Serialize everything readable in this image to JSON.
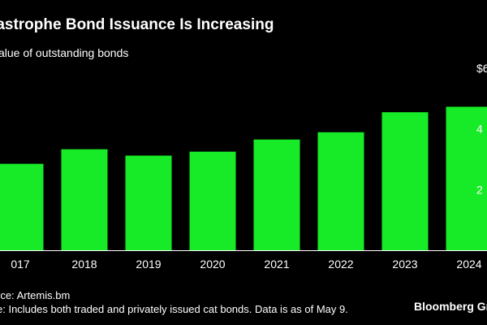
{
  "header": {
    "title": "tastrophe Bond Issuance Is Increasing",
    "subtitle": "alue of outstanding bonds"
  },
  "footer": {
    "source": "rce: Artemis.bm",
    "note": "e: Includes both traded and privately issued cat bonds. Data is as of May 9.",
    "brand": "Bloomberg Gr"
  },
  "colors": {
    "background": "#000000",
    "bar": "#17eb27",
    "text": "#ffffff",
    "gridline": "#3a3a3a"
  },
  "chart_data": {
    "type": "bar",
    "categories": [
      "017",
      "2018",
      "2019",
      "2020",
      "2021",
      "2022",
      "2023",
      "2024"
    ],
    "values": [
      28.5,
      33.3,
      31.2,
      32.5,
      36.5,
      38.9,
      45.5,
      47.3
    ],
    "ylim": [
      0,
      60
    ],
    "y_tick_labels": [
      {
        "value": 60,
        "label": "$6"
      },
      {
        "value": 40,
        "label": "4"
      },
      {
        "value": 20,
        "label": "2"
      }
    ],
    "grid": false,
    "legend": "none",
    "ylabel": "",
    "xlabel": ""
  }
}
